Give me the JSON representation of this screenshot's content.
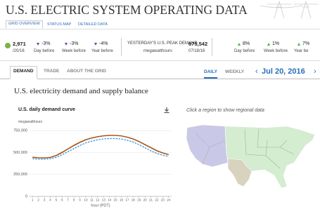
{
  "header": {
    "title": "U.S. ELECTRIC SYSTEM OPERATING DATA",
    "tabs": [
      "GRID OVERVIEW",
      "STATUS MAP",
      "DETAILED DATA"
    ]
  },
  "stats": {
    "current": {
      "value": "2,971",
      "date": "/20/16"
    },
    "changes": [
      {
        "value": "-3%",
        "label": "Day before"
      },
      {
        "value": "-3%",
        "label": "Week before"
      },
      {
        "value": "-4%",
        "label": "Year before"
      }
    ],
    "peak": {
      "label": "YESTERDAY'S U.S. PEAK DEMAND",
      "value": "675,542",
      "unit": "megawatthours",
      "date": "07/18/16",
      "changes": [
        {
          "value": "8%",
          "label": "Day before"
        },
        {
          "value": "1%",
          "label": "Week before"
        },
        {
          "value": "7%",
          "label": "Year be"
        }
      ]
    }
  },
  "nav": {
    "tabs": [
      "DEMAND",
      "TRADE",
      "ABOUT THE GRID"
    ],
    "periods": [
      "DAILY",
      "WEEKLY"
    ],
    "date": "Jul 20, 2016"
  },
  "section_title": "U.S. electricity demand and supply balance",
  "map_hint": "Click a region to show regional data",
  "chart_data": {
    "type": "line",
    "title": "U.S. daily demand curve",
    "y_label": "megawatthours",
    "x_label": "hour (PDT)",
    "x": [
      1,
      2,
      3,
      4,
      5,
      6,
      7,
      8,
      9,
      10,
      11,
      12,
      13,
      14,
      15,
      16,
      17,
      18,
      19,
      20,
      21,
      22,
      23,
      24
    ],
    "xlim": [
      0.5,
      24.5
    ],
    "xticks": [
      1,
      2,
      3,
      4,
      5,
      6,
      7,
      8,
      9,
      10,
      11,
      12,
      13,
      14,
      15,
      16,
      17,
      18,
      19,
      20,
      21,
      22,
      23,
      24
    ],
    "ylim": [
      0,
      800000
    ],
    "yticks": [
      0,
      {
        "value": 250000,
        "label": "250,000"
      },
      {
        "value": 500000,
        "label": "500,000"
      },
      {
        "value": 750000,
        "label": "750,000"
      }
    ],
    "grid": true,
    "series": [
      {
        "color": "#e8a33c",
        "values": [
          450000,
          442000,
          440000,
          446000,
          468000,
          505000,
          545000,
          585000,
          620000,
          648000,
          668000,
          682000,
          692000,
          697000,
          696000,
          690000,
          676000,
          656000,
          627000,
          592000,
          558000,
          523000,
          497000,
          478000
        ]
      },
      {
        "color": "#9c4a1e",
        "values": [
          445000,
          440000,
          438000,
          444000,
          465000,
          500000,
          540000,
          580000,
          615000,
          645000,
          665000,
          680000,
          690000,
          695000,
          695000,
          690000,
          675000,
          655000,
          625000,
          590000,
          555000,
          520000,
          495000,
          475000
        ]
      },
      {
        "color": "#3a95d8",
        "dashed": true,
        "values": [
          430000,
          425000,
          424000,
          430000,
          445000,
          475000,
          510000,
          545000,
          580000,
          610000,
          630000,
          645000,
          655000,
          660000,
          660000,
          655000,
          640000,
          620000,
          590000,
          555000,
          520000,
          490000,
          470000,
          455000
        ]
      }
    ]
  }
}
